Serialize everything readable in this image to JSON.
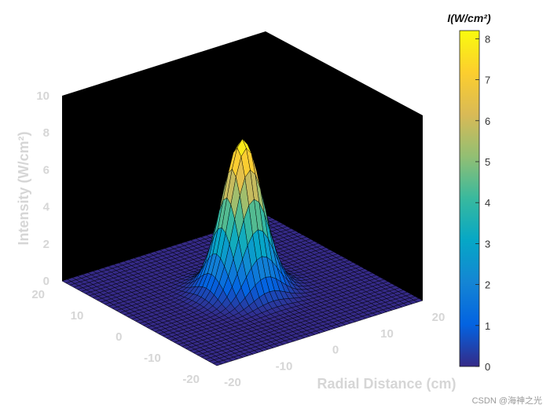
{
  "chart_data": {
    "type": "surface",
    "zlabel": "Intensity (W/cm²)",
    "xlabel": "Radial Distance (cm)",
    "ylabel": "",
    "x_ticks": [
      "-20",
      "-10",
      "0",
      "10",
      "20"
    ],
    "y_ticks": [
      "-20",
      "-10",
      "0",
      "10",
      "20"
    ],
    "z_ticks": [
      "0",
      "2",
      "4",
      "6",
      "8",
      "10"
    ],
    "xlim": [
      -20,
      20
    ],
    "ylim": [
      -20,
      20
    ],
    "zlim": [
      0,
      10
    ],
    "surface": {
      "function": "gaussian",
      "peak_intensity": 8.2,
      "sigma_cm": 3.2,
      "grid_points_per_axis": 41
    },
    "colorbar": {
      "title": "I(W/cm²)",
      "ticks": [
        "0",
        "1",
        "2",
        "3",
        "4",
        "5",
        "6",
        "7",
        "8"
      ],
      "range": [
        0,
        8.2
      ],
      "colormap": "parula"
    },
    "background": "#000000",
    "grid": false
  },
  "watermark": "CSDN @海神之光"
}
